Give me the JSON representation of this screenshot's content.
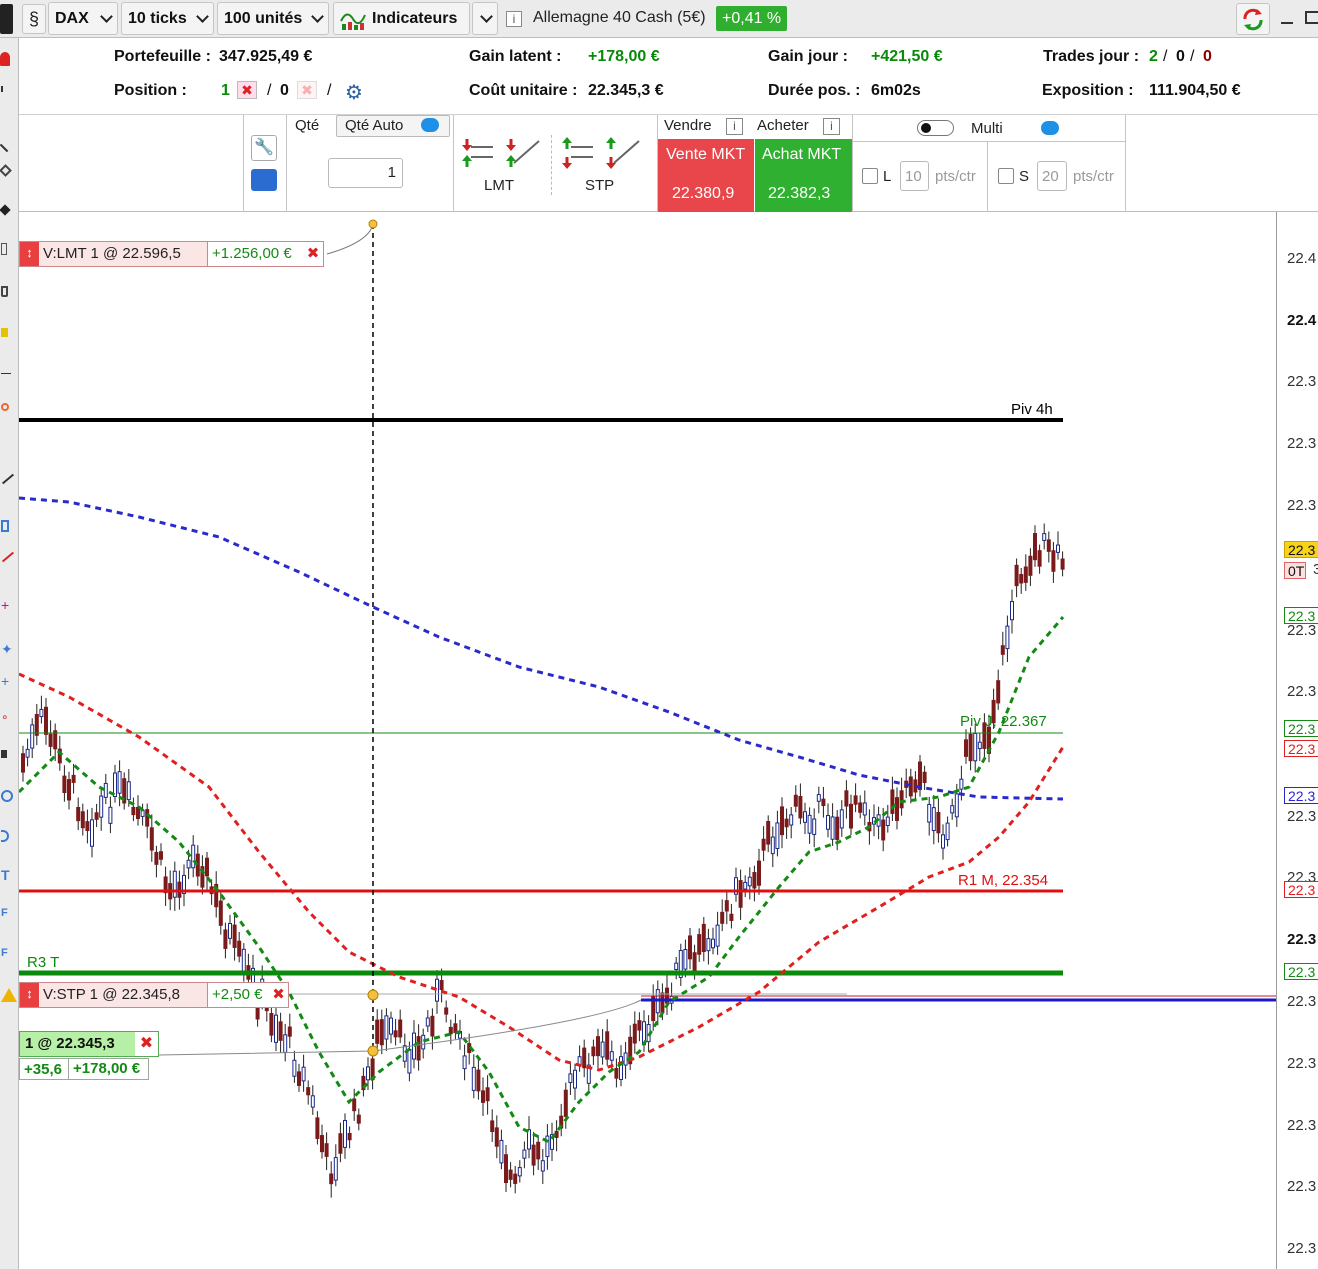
{
  "toolbar": {
    "symbol": "DAX",
    "ticks": "10 ticks",
    "units": "100 unités",
    "indicators": "Indicateurs",
    "instrument": "Allemagne 40 Cash (5€)",
    "change": "+0,41 %",
    "colors": {
      "change_bg": "#2fae2f"
    }
  },
  "info": {
    "portefeuille_label": "Portefeuille :",
    "portefeuille_value": "347.925,49 €",
    "gain_latent_label": "Gain latent :",
    "gain_latent_value": "+178,00 €",
    "gain_jour_label": "Gain jour :",
    "gain_jour_value": "+421,50 €",
    "trades_label": "Trades jour :",
    "trades_a": "2",
    "trades_b": "0",
    "trades_c": "0",
    "position_label": "Position :",
    "position_long": "1",
    "position_short": "0",
    "cout_label": "Coût unitaire :",
    "cout_value": "22.345,3 €",
    "duree_label": "Durée pos. :",
    "duree_value": "6m02s",
    "exposition_label": "Exposition :",
    "exposition_value": "111.904,50 €"
  },
  "order": {
    "qty_label": "Qté",
    "qty_auto_label": "Qté Auto",
    "qty_value": "1",
    "lmt_label": "LMT",
    "stp_label": "STP",
    "sell_header": "Vendre",
    "buy_header": "Acheter",
    "sell_btn": "Vente MKT",
    "sell_price": "22.380,9",
    "buy_btn": "Achat MKT",
    "buy_price": "22.382,3",
    "multi_label": "Multi",
    "l_label": "L",
    "l_value": "10",
    "s_label": "S",
    "s_value": "20",
    "pts_label": "pts/ctr",
    "colors": {
      "sell": "#e8464a",
      "buy": "#30b030"
    }
  },
  "chart": {
    "lines": {
      "piv4h": "Piv 4h",
      "pivj": "Piv J, 22.367",
      "r1m": "R1 M, 22.354",
      "r3t": "R3 T"
    },
    "orders": {
      "lmt_text": "V:LMT 1 @ 22.596,5",
      "lmt_gain": "+1.256,00 €",
      "stp_text": "V:STP 1 @ 22.345,8",
      "stp_gain": "+2,50 €",
      "pos_text": "1 @ 22.345,3",
      "pos_pts": "+35,6",
      "pos_gain": "+178,00 €"
    },
    "axis_ticks": [
      "22.4",
      "22.4",
      "22.3",
      "22.3",
      "22.3",
      "22.3",
      "22.3",
      "22.3",
      "22.3",
      "22.3",
      "22.3",
      "22.3",
      "22.3",
      "22.3",
      "22.3",
      "22.3",
      "22.3"
    ],
    "axis_tags": {
      "last": "22.3",
      "ot": "0T",
      "green1": "22.3",
      "green2": "22.3",
      "red1": "22.3",
      "blue1": "22.3",
      "red2": "22.3",
      "green3": "22.3",
      "last_suffix": "3"
    },
    "colors": {
      "sma_blue": "#2a2acc",
      "sma_red": "#e02020",
      "sma_green": "#138a13",
      "r1m": "#e01010",
      "r3t": "#0a8a0a",
      "piv4h": "#000000"
    }
  }
}
